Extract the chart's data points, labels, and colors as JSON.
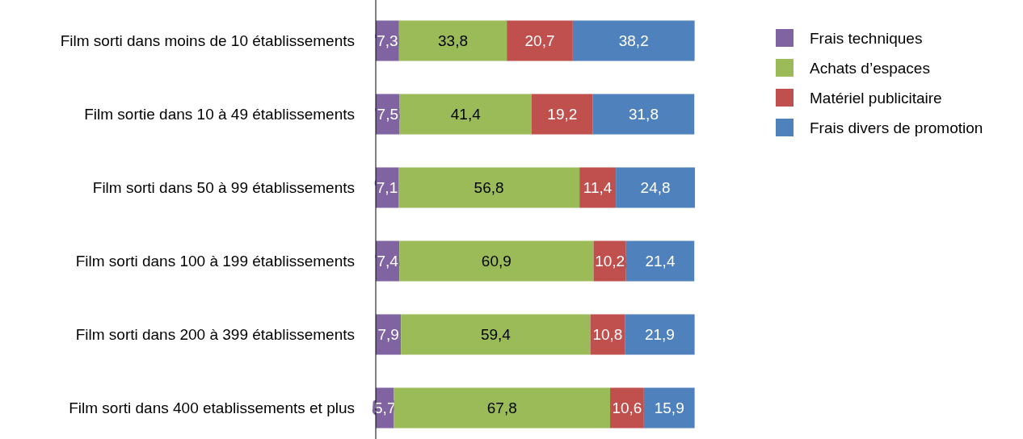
{
  "chart_data": {
    "type": "bar",
    "orientation": "horizontal",
    "stacked": true,
    "legend": "right",
    "tick_labels": "y",
    "categories": [
      "Film sorti dans moins de 10 établissements",
      "Film sortie dans 10 à 49 établissements",
      "Film sorti dans 50 à 99 établissements",
      "Film sorti dans 100 à 199 établissements",
      "Film sorti dans 200 à 399 établissements",
      "Film sorti dans 400 etablissements et plus"
    ],
    "series": [
      {
        "name": "Frais techniques",
        "color": "#8064a2",
        "values": [
          7.3,
          7.5,
          7.1,
          7.4,
          7.9,
          5.7
        ],
        "value_labels": [
          "7,3",
          "7,5",
          "7,1",
          "7,4",
          "7,9",
          "5,7"
        ]
      },
      {
        "name": "Achats d’espaces",
        "color": "#9bbb59",
        "values": [
          33.8,
          41.4,
          56.8,
          60.9,
          59.4,
          67.8
        ],
        "value_labels": [
          "33,8",
          "41,4",
          "56,8",
          "60,9",
          "59,4",
          "67,8"
        ]
      },
      {
        "name": "Matériel publicitaire",
        "color": "#c0504d",
        "values": [
          20.7,
          19.2,
          11.4,
          10.2,
          10.8,
          10.6
        ],
        "value_labels": [
          "20,7",
          "19,2",
          "11,4",
          "10,2",
          "10,8",
          "10,6"
        ]
      },
      {
        "name": "Frais divers de promotion",
        "color": "#4f81bd",
        "values": [
          38.2,
          31.8,
          24.8,
          21.4,
          21.9,
          15.9
        ],
        "value_labels": [
          "38,2",
          "31,8",
          "24,8",
          "21,4",
          "21,9",
          "15,9"
        ]
      }
    ]
  }
}
